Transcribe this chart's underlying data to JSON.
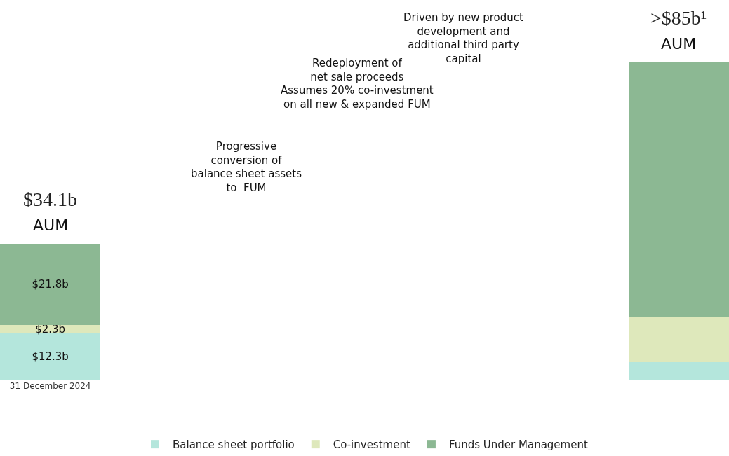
{
  "chart_data": {
    "type": "bar",
    "stacked": true,
    "categories": [
      "31 December 2024",
      null
    ],
    "series": [
      {
        "name": "Balance sheet portfolio",
        "color": "#b4e6dc",
        "values": [
          12.3,
          4.7
        ],
        "value_labels": [
          "$12.3b",
          null
        ]
      },
      {
        "name": "Co-investment",
        "color": "#dee8bb",
        "values": [
          2.3,
          12.0
        ],
        "value_labels": [
          "$2.3b",
          null
        ]
      },
      {
        "name": "Funds Under Management",
        "color": "#8cb893",
        "values": [
          21.8,
          68.3
        ],
        "value_labels": [
          "$21.8b",
          null
        ]
      }
    ],
    "annotations": [
      "$34.1b",
      ">$85b¹",
      "AUM",
      "AUM",
      "Progressive\nconversion of\nbalance sheet assets\nto  FUM",
      "Redeployment of\nnet sale proceeds\nAssumes 20% co-investment\non all new & expanded FUM",
      "Driven by new product\ndevelopment and\nadditional third party\ncapital"
    ],
    "legend": "bottom"
  }
}
